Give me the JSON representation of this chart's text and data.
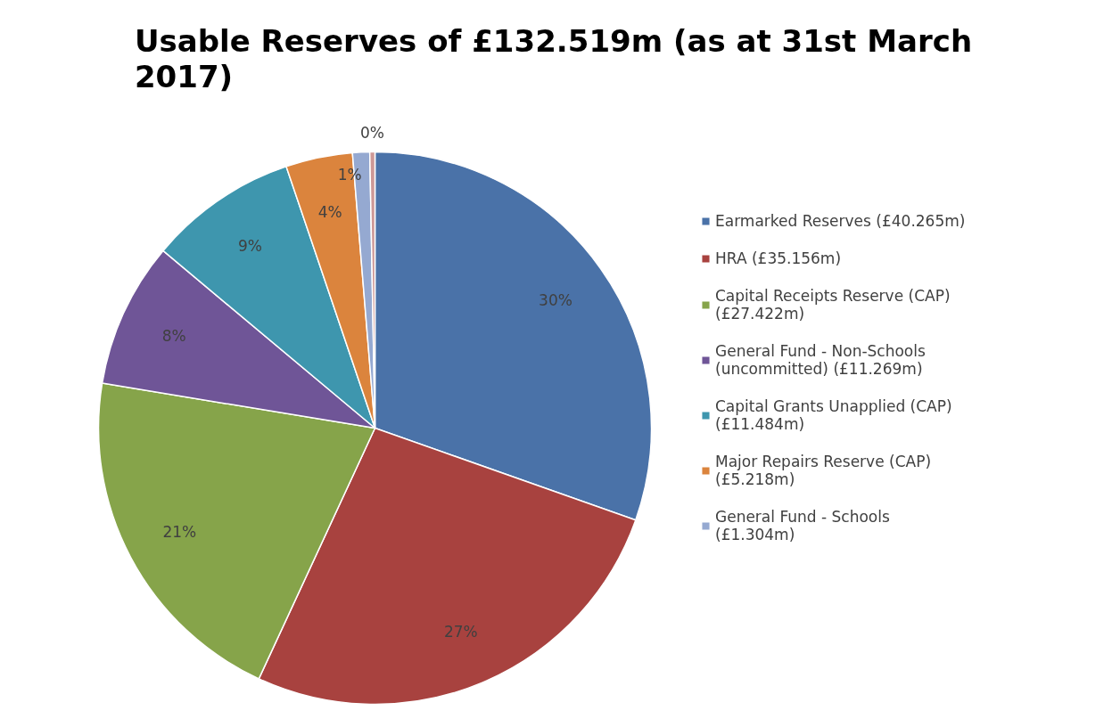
{
  "chart_data": {
    "type": "pie",
    "title": "Usable Reserves of £132.519m (as at 31st March 2017)",
    "categories": [
      "Earmarked Reserves (£40.265m)",
      "HRA (£35.156m)",
      "Capital Receipts Reserve (CAP) (£27.422m)",
      "General Fund - Non-Schools (uncommitted) (£11.269m)",
      "Capital Grants Unapplied (CAP) (£11.484m)",
      "Major Repairs Reserve (CAP) (£5.218m)",
      "General Fund - Schools (£1.304m)",
      null
    ],
    "values": [
      30.4,
      26.5,
      20.7,
      8.5,
      8.7,
      3.9,
      1.0,
      0.3
    ],
    "value_labels": [
      "30%",
      "27%",
      "21%",
      "8%",
      "9%",
      "4%",
      "1%",
      "0%"
    ],
    "colors": [
      "#4a72a8",
      "#a8423f",
      "#86a44a",
      "#6f5597",
      "#3e96ae",
      "#db843d",
      "#95a9d1",
      "#cd9896"
    ],
    "legend": "right"
  }
}
